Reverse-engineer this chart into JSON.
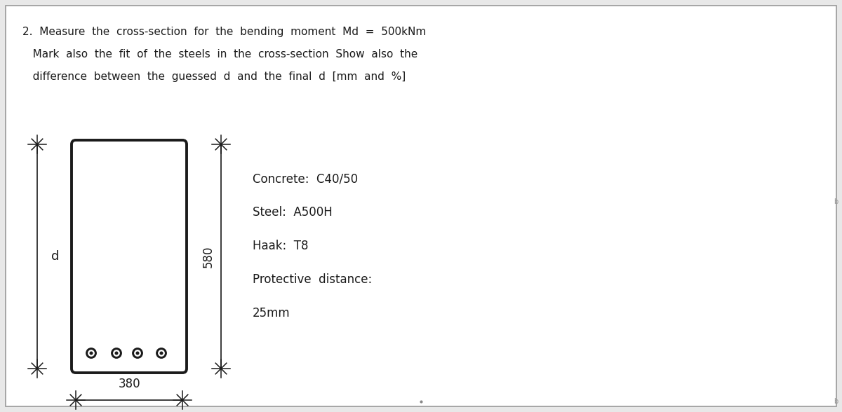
{
  "title_line1": "2.  Measure  the  cross-section  for  the  bending  moment  Md  =  500kNm",
  "title_line2": "   Mark  also  the  fit  of  the  steels  in  the  cross-section  Show  also  the",
  "title_line3": "   difference  between  the  guessed  d  and  the  final  d  [mm  and  %]",
  "bg_color": "#ffffff",
  "box_color": "#1a1a1a",
  "text_color": "#1a1a1a",
  "dim_width": "380",
  "dim_height": "580",
  "d_label": "d",
  "concrete": "Concrete:  C40/50",
  "steel": "Steel:  A500H",
  "haak": "Haak:  T8",
  "protective": "Protective  distance:",
  "distance": "25mm",
  "outer_border_color": "#999999",
  "fig_bg": "#e8e8e8"
}
